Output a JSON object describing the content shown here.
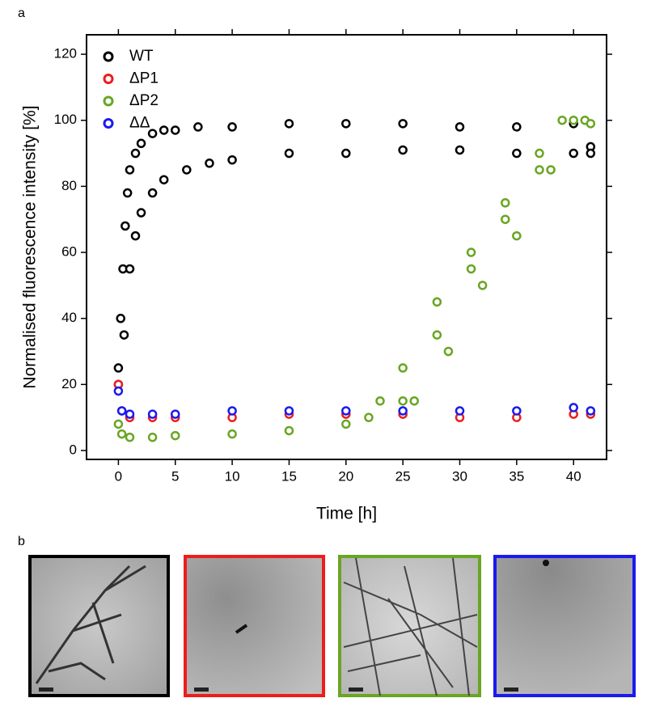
{
  "panel_labels": [
    "a",
    "b"
  ],
  "chart_data": {
    "type": "scatter",
    "xlabel": "Time [h]",
    "ylabel": "Normalised fluorescence intensity [%]",
    "xlim": [
      -2.8,
      42.9
    ],
    "ylim": [
      -2.7,
      125.9
    ],
    "xticks": [
      0,
      5,
      10,
      15,
      20,
      25,
      30,
      35,
      40
    ],
    "yticks": [
      0,
      20,
      40,
      60,
      80,
      100,
      120
    ],
    "legend": "upper left",
    "series": [
      {
        "name": "WT",
        "color": "#000000",
        "x": [
          0,
          0.2,
          0.4,
          0.6,
          0.8,
          1,
          1.5,
          2,
          3,
          4,
          5,
          7,
          10,
          15,
          20,
          25,
          30,
          35,
          40,
          41.5,
          0,
          0.5,
          1,
          1.5,
          2,
          3,
          4,
          6,
          8,
          10,
          15,
          20,
          25,
          30,
          35,
          40,
          41.5
        ],
        "y": [
          25,
          40,
          55,
          68,
          78,
          85,
          90,
          93,
          96,
          97,
          97,
          98,
          98,
          99,
          99,
          99,
          98,
          98,
          99,
          92,
          20,
          35,
          55,
          65,
          72,
          78,
          82,
          85,
          87,
          88,
          90,
          90,
          91,
          91,
          90,
          90,
          90
        ]
      },
      {
        "name": "ΔP1",
        "color": "#ee1c1c",
        "x": [
          0,
          0.3,
          1,
          3,
          5,
          10,
          15,
          20,
          25,
          30,
          35,
          40,
          41.5
        ],
        "y": [
          20,
          12,
          10,
          10,
          10,
          10,
          11,
          11,
          11,
          10,
          10,
          11,
          11
        ]
      },
      {
        "name": "ΔP2",
        "color": "#6aa523",
        "x": [
          0,
          0.3,
          1,
          3,
          5,
          10,
          15,
          20,
          22,
          23,
          25,
          28,
          31,
          34,
          37,
          39,
          25,
          28,
          31,
          34,
          37,
          40,
          26,
          29,
          32,
          35,
          38,
          41,
          41.5
        ],
        "y": [
          8,
          5,
          4,
          4,
          4.5,
          5,
          6,
          8,
          10,
          15,
          25,
          45,
          60,
          75,
          90,
          100,
          15,
          35,
          55,
          70,
          85,
          100,
          15,
          30,
          50,
          65,
          85,
          100,
          99
        ]
      },
      {
        "name": "ΔΔ",
        "color": "#1a1aee",
        "x": [
          0,
          0.3,
          1,
          3,
          5,
          10,
          15,
          20,
          25,
          30,
          35,
          40,
          41.5
        ],
        "y": [
          18,
          12,
          11,
          11,
          11,
          12,
          12,
          12,
          12,
          12,
          12,
          13,
          12
        ]
      }
    ]
  }
}
